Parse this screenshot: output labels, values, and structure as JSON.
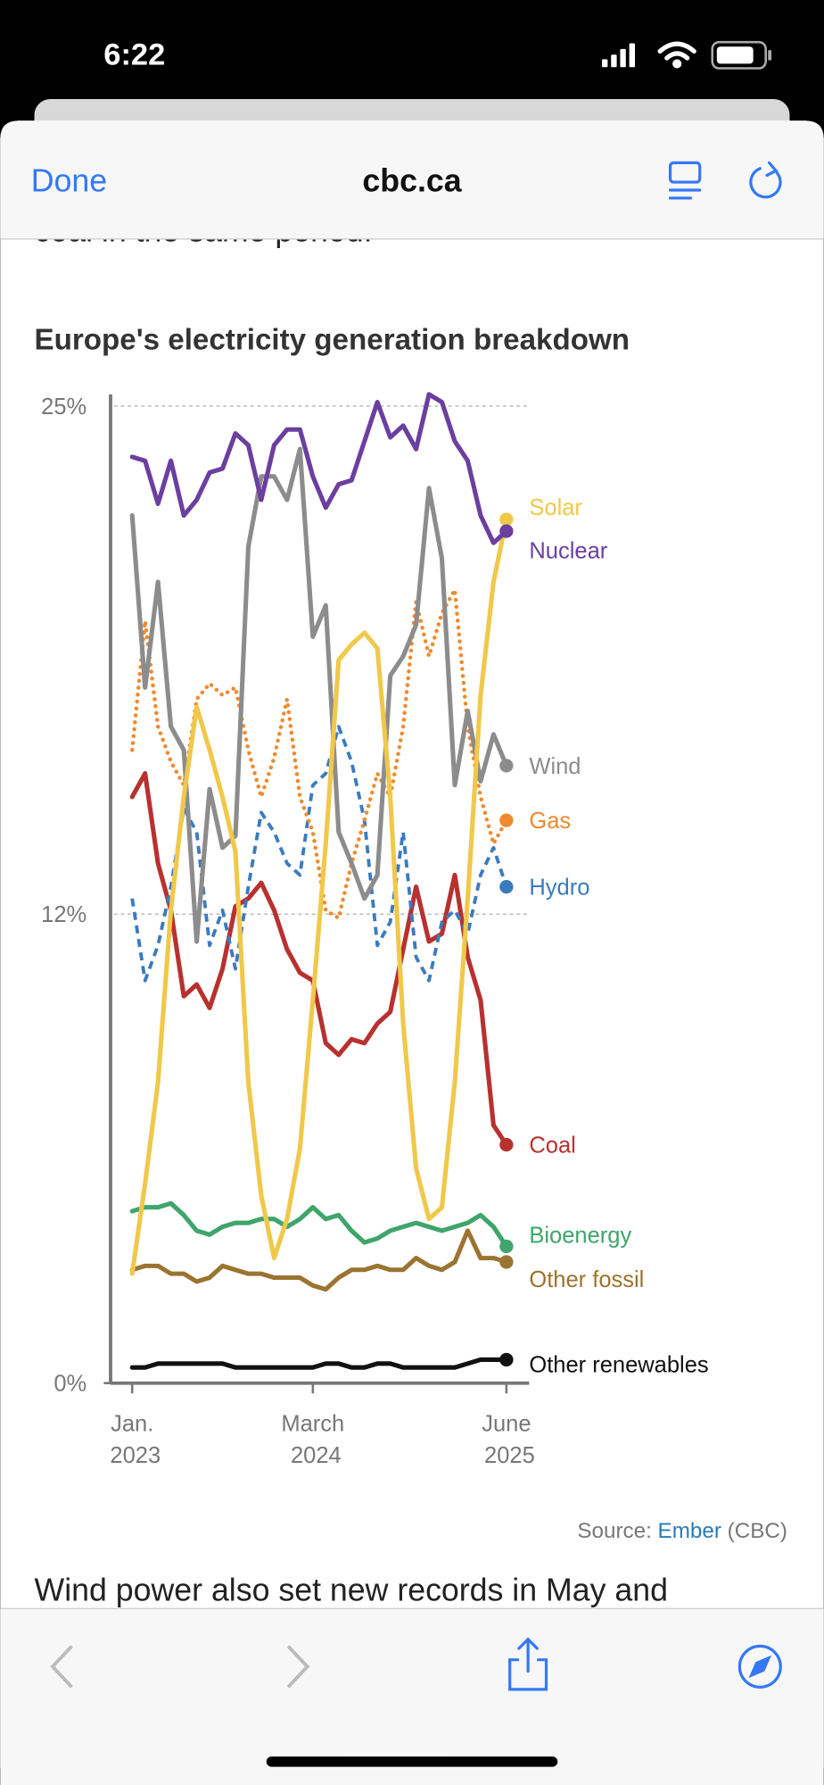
{
  "status_bar": {
    "time": "6:22"
  },
  "browser": {
    "done": "Done",
    "domain": "cbc.ca"
  },
  "article": {
    "before": "coal in the same period.",
    "after": "Wind power also set new records in May and"
  },
  "source": {
    "prefix": "Source:",
    "link": "Ember",
    "suffix": "(CBC)"
  },
  "chart_data": {
    "type": "line",
    "title": "Europe's electricity generation breakdown",
    "x": [
      "2023-01",
      "2023-02",
      "2023-03",
      "2023-04",
      "2023-05",
      "2023-06",
      "2023-07",
      "2023-08",
      "2023-09",
      "2023-10",
      "2023-11",
      "2023-12",
      "2024-01",
      "2024-02",
      "2024-03",
      "2024-04",
      "2024-05",
      "2024-06",
      "2024-07",
      "2024-08",
      "2024-09",
      "2024-10",
      "2024-11",
      "2024-12",
      "2025-01",
      "2025-02",
      "2025-03",
      "2025-04",
      "2025-05",
      "2025-06"
    ],
    "xticks": [
      {
        "value": "2023-01",
        "label": "Jan. 2023"
      },
      {
        "value": "2024-03",
        "label": "March 2024"
      },
      {
        "value": "2025-06",
        "label": "June 2025"
      }
    ],
    "ylim": [
      0,
      25.3
    ],
    "yticks": [
      {
        "value": 0,
        "label": "0%"
      },
      {
        "value": 12,
        "label": "12%"
      },
      {
        "value": 25,
        "label": "25%"
      }
    ],
    "grid": true,
    "series": [
      {
        "name": "Solar",
        "color": "#f0c84a",
        "style": "solid",
        "values": [
          2.8,
          5.1,
          7.7,
          12.1,
          15.0,
          17.3,
          16.2,
          15.0,
          13.6,
          7.7,
          4.8,
          3.2,
          4.2,
          6.0,
          9.8,
          13.8,
          18.5,
          18.9,
          19.2,
          18.8,
          15.0,
          9.2,
          5.5,
          4.2,
          4.5,
          7.7,
          12.4,
          17.6,
          20.5,
          22.1
        ]
      },
      {
        "name": "Nuclear",
        "color": "#6b3fa0",
        "style": "solid",
        "values": [
          23.7,
          23.6,
          22.5,
          23.6,
          22.2,
          22.6,
          23.3,
          23.4,
          24.3,
          24.0,
          22.6,
          24.0,
          24.4,
          24.4,
          23.2,
          22.4,
          23.0,
          23.1,
          24.1,
          25.1,
          24.2,
          24.5,
          23.9,
          25.3,
          25.1,
          24.1,
          23.6,
          22.2,
          21.5,
          21.8
        ]
      },
      {
        "name": "Wind",
        "color": "#8c8c8c",
        "style": "solid",
        "values": [
          22.2,
          17.8,
          20.5,
          16.8,
          16.2,
          11.3,
          15.2,
          13.7,
          14.0,
          21.4,
          23.2,
          23.2,
          22.6,
          23.9,
          19.1,
          19.9,
          14.1,
          13.3,
          12.4,
          13.0,
          18.1,
          18.6,
          19.4,
          22.9,
          21.1,
          15.3,
          17.2,
          15.4,
          16.6,
          15.8
        ]
      },
      {
        "name": "Gas",
        "color": "#f08a2e",
        "style": "dotted",
        "values": [
          16.2,
          19.5,
          16.8,
          15.9,
          15.3,
          17.5,
          17.9,
          17.6,
          17.8,
          16.2,
          15.0,
          16.0,
          17.5,
          15.0,
          14.1,
          12.1,
          11.9,
          13.3,
          14.4,
          15.6,
          15.0,
          16.8,
          20.0,
          18.6,
          19.7,
          20.3,
          16.8,
          15.0,
          13.8,
          14.4
        ]
      },
      {
        "name": "Hydro",
        "color": "#3a7bbf",
        "style": "dashed",
        "values": [
          12.4,
          10.3,
          11.2,
          12.7,
          14.7,
          14.1,
          11.2,
          12.1,
          10.6,
          12.7,
          14.6,
          14.1,
          13.3,
          13.0,
          15.3,
          15.6,
          16.8,
          15.9,
          14.4,
          11.2,
          11.8,
          14.1,
          10.9,
          10.3,
          11.8,
          12.1,
          11.5,
          13.0,
          13.7,
          12.7
        ]
      },
      {
        "name": "Coal",
        "color": "#b8312f",
        "style": "solid",
        "values": [
          15.0,
          15.6,
          13.3,
          12.1,
          9.9,
          10.2,
          9.6,
          10.6,
          12.2,
          12.4,
          12.8,
          12.1,
          11.1,
          10.5,
          10.3,
          8.7,
          8.4,
          8.8,
          8.7,
          9.2,
          9.5,
          11.1,
          12.7,
          11.3,
          11.5,
          13.0,
          10.9,
          9.8,
          6.6,
          6.1
        ]
      },
      {
        "name": "Bioenergy",
        "color": "#3fa56a",
        "style": "solid",
        "values": [
          4.4,
          4.5,
          4.5,
          4.6,
          4.3,
          3.9,
          3.8,
          4.0,
          4.1,
          4.1,
          4.2,
          4.2,
          4.0,
          4.2,
          4.5,
          4.2,
          4.3,
          3.9,
          3.6,
          3.7,
          3.9,
          4.0,
          4.1,
          4.0,
          3.9,
          4.0,
          4.1,
          4.3,
          4.0,
          3.5
        ]
      },
      {
        "name": "Other fossil",
        "color": "#9a7430",
        "style": "solid",
        "values": [
          2.9,
          3.0,
          3.0,
          2.8,
          2.8,
          2.6,
          2.7,
          3.0,
          2.9,
          2.8,
          2.8,
          2.7,
          2.7,
          2.7,
          2.5,
          2.4,
          2.7,
          2.9,
          2.9,
          3.0,
          2.9,
          2.9,
          3.2,
          3.0,
          2.9,
          3.1,
          3.9,
          3.2,
          3.2,
          3.1
        ]
      },
      {
        "name": "Other renewables",
        "color": "#111111",
        "style": "solid",
        "values": [
          0.4,
          0.4,
          0.5,
          0.5,
          0.5,
          0.5,
          0.5,
          0.5,
          0.4,
          0.4,
          0.4,
          0.4,
          0.4,
          0.4,
          0.4,
          0.5,
          0.5,
          0.4,
          0.4,
          0.5,
          0.5,
          0.4,
          0.4,
          0.4,
          0.4,
          0.4,
          0.5,
          0.6,
          0.6,
          0.6
        ]
      }
    ]
  }
}
